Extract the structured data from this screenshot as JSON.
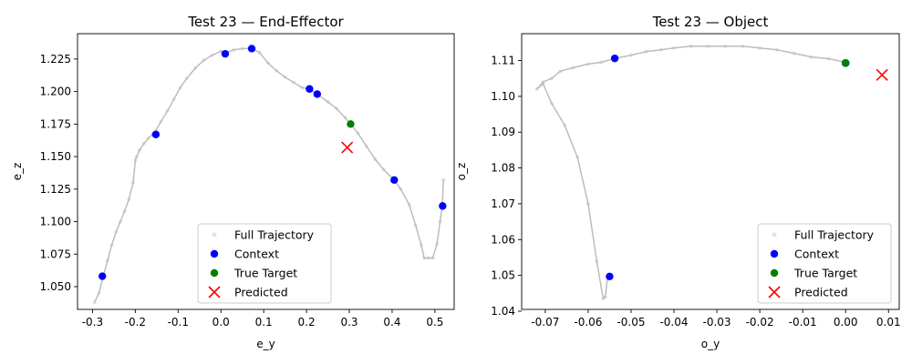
{
  "colors": {
    "trajectory": "#bdbdbd",
    "context": "#0000ff",
    "true_target": "#008000",
    "predicted": "#ff0000"
  },
  "chart_data": [
    {
      "type": "scatter",
      "title": "Test 23 — End-Effector",
      "xlabel": "e_y",
      "ylabel": "e_z",
      "xlim": [
        -0.335,
        0.545
      ],
      "ylim": [
        1.0325,
        1.2445
      ],
      "xticks": [
        "-0.3",
        "-0.2",
        "-0.1",
        "0.0",
        "0.1",
        "0.2",
        "0.3",
        "0.4",
        "0.5"
      ],
      "yticks": [
        "1.050",
        "1.075",
        "1.100",
        "1.125",
        "1.150",
        "1.175",
        "1.200",
        "1.225"
      ],
      "grid": false,
      "legend_position": "lower center",
      "series": [
        {
          "name": "Full Trajectory",
          "kind": "line-with-points",
          "x": [
            -0.295,
            -0.285,
            -0.275,
            -0.265,
            -0.255,
            -0.245,
            -0.235,
            -0.225,
            -0.215,
            -0.205,
            -0.2,
            -0.197,
            -0.19,
            -0.18,
            -0.17,
            -0.16,
            -0.152,
            -0.14,
            -0.125,
            -0.11,
            -0.095,
            -0.08,
            -0.06,
            -0.04,
            -0.02,
            0.0,
            0.01,
            0.03,
            0.05,
            0.072,
            0.09,
            0.11,
            0.13,
            0.15,
            0.17,
            0.19,
            0.207,
            0.225,
            0.25,
            0.27,
            0.29,
            0.303,
            0.32,
            0.34,
            0.36,
            0.38,
            0.405,
            0.42,
            0.44,
            0.455,
            0.468,
            0.475,
            0.485,
            0.495,
            0.505,
            0.512,
            0.517,
            0.52
          ],
          "y": [
            1.038,
            1.045,
            1.058,
            1.07,
            1.082,
            1.092,
            1.1,
            1.108,
            1.117,
            1.13,
            1.147,
            1.15,
            1.155,
            1.16,
            1.164,
            1.167,
            1.17,
            1.177,
            1.185,
            1.194,
            1.203,
            1.21,
            1.218,
            1.224,
            1.228,
            1.231,
            1.23,
            1.232,
            1.233,
            1.233,
            1.23,
            1.222,
            1.216,
            1.211,
            1.207,
            1.203,
            1.202,
            1.198,
            1.192,
            1.187,
            1.18,
            1.175,
            1.168,
            1.158,
            1.148,
            1.14,
            1.132,
            1.125,
            1.113,
            1.097,
            1.082,
            1.072,
            1.072,
            1.072,
            1.083,
            1.1,
            1.112,
            1.132
          ]
        },
        {
          "name": "Context",
          "kind": "points",
          "x": [
            -0.277,
            -0.152,
            0.01,
            0.072,
            0.207,
            0.225,
            0.405,
            0.518
          ],
          "y": [
            1.058,
            1.167,
            1.229,
            1.233,
            1.202,
            1.198,
            1.132,
            1.112
          ]
        },
        {
          "name": "True Target",
          "kind": "points",
          "x": [
            0.303
          ],
          "y": [
            1.175
          ]
        },
        {
          "name": "Predicted",
          "kind": "x-marker",
          "x": [
            0.295
          ],
          "y": [
            1.157
          ]
        }
      ]
    },
    {
      "type": "scatter",
      "title": "Test 23 — Object",
      "xlabel": "o_y",
      "ylabel": "o_z",
      "xlim": [
        -0.0755,
        0.0125
      ],
      "ylim": [
        1.0405,
        1.1175
      ],
      "xticks": [
        "-0.07",
        "-0.06",
        "-0.05",
        "-0.04",
        "-0.03",
        "-0.02",
        "-0.01",
        "0.00",
        "0.01"
      ],
      "yticks": [
        "1.04",
        "1.05",
        "1.06",
        "1.07",
        "1.08",
        "1.09",
        "1.10",
        "1.11"
      ],
      "grid": false,
      "legend_position": "lower right",
      "series": [
        {
          "name": "Full Trajectory",
          "kind": "line-with-points",
          "x": [
            -0.0555,
            -0.056,
            -0.0565,
            -0.058,
            -0.06,
            -0.0625,
            -0.0655,
            -0.0685,
            -0.0705,
            -0.072,
            -0.0705,
            -0.0685,
            -0.0665,
            -0.0635,
            -0.06,
            -0.057,
            -0.054,
            -0.05,
            -0.0465,
            -0.043,
            -0.04,
            -0.036,
            -0.032,
            -0.028,
            -0.024,
            -0.02,
            -0.016,
            -0.012,
            -0.008,
            -0.004,
            0.0
          ],
          "y": [
            1.0495,
            1.044,
            1.0435,
            1.054,
            1.07,
            1.083,
            1.092,
            1.098,
            1.1035,
            1.102,
            1.104,
            1.105,
            1.107,
            1.108,
            1.109,
            1.1095,
            1.1105,
            1.1115,
            1.1125,
            1.113,
            1.1135,
            1.114,
            1.114,
            1.114,
            1.114,
            1.1135,
            1.113,
            1.112,
            1.111,
            1.1105,
            1.1095
          ]
        },
        {
          "name": "Context",
          "kind": "points",
          "x": [
            -0.055,
            -0.0538,
            0.0,
            0.0,
            0.0
          ],
          "y": [
            1.0497,
            1.1106,
            1.1093,
            1.1093,
            1.1093
          ]
        },
        {
          "name": "True Target",
          "kind": "points",
          "x": [
            0.0
          ],
          "y": [
            1.1093
          ]
        },
        {
          "name": "Predicted",
          "kind": "x-marker",
          "x": [
            0.0085
          ],
          "y": [
            1.106
          ]
        }
      ]
    }
  ]
}
